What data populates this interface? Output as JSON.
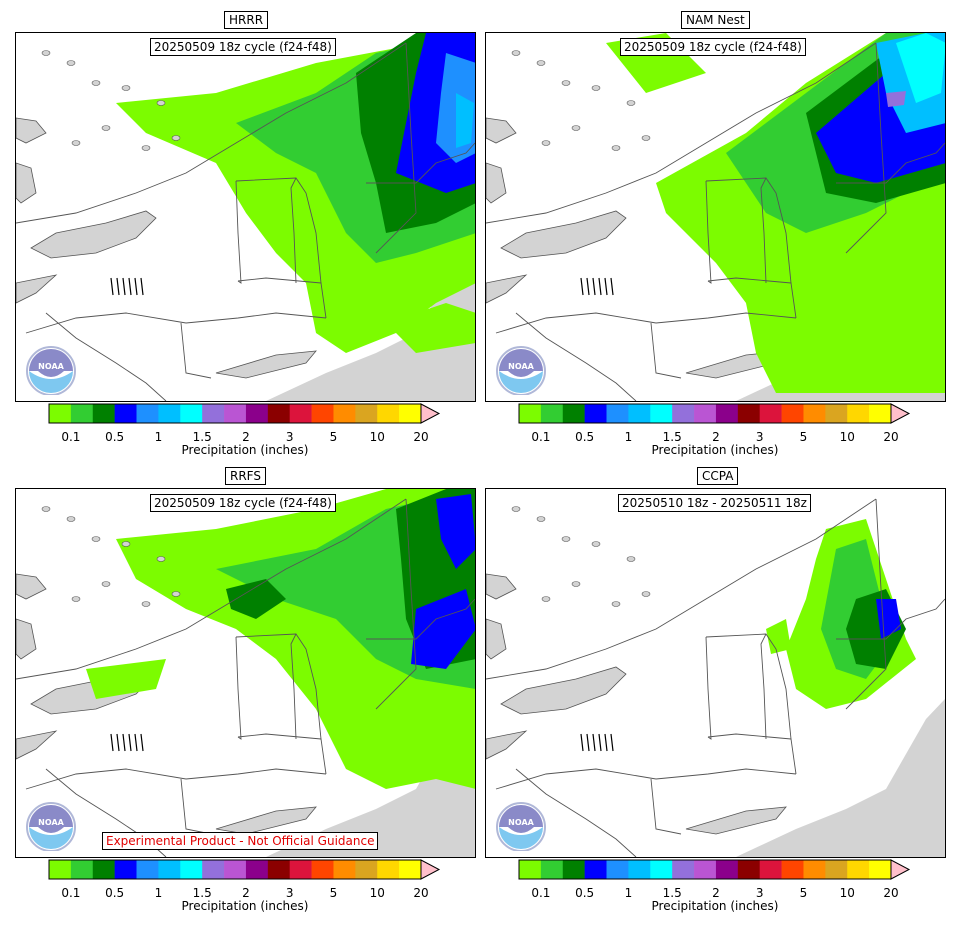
{
  "panels": [
    {
      "title": "HRRR",
      "cycle": "20250509 18z cycle (f24-f48)",
      "warning": "",
      "pattern": "hrrr"
    },
    {
      "title": "NAM Nest",
      "cycle": "20250509 18z cycle (f24-f48)",
      "warning": "",
      "pattern": "nam"
    },
    {
      "title": "RRFS",
      "cycle": "20250509 18z cycle (f24-f48)",
      "warning": "Experimental Product - Not Official Guidance",
      "pattern": "rrfs"
    },
    {
      "title": "CCPA",
      "cycle": "20250510 18z - 20250511 18z",
      "warning": "",
      "pattern": "ccpa"
    }
  ],
  "logo": {
    "text": "NOAA",
    "icon": "noaa-logo-icon"
  },
  "colorbar": {
    "label": "Precipitation (inches)",
    "ticks": [
      "0.1",
      "0.5",
      "1",
      "1.5",
      "2",
      "3",
      "5",
      "10",
      "20"
    ],
    "colors": [
      "#7cfc00",
      "#32cd32",
      "#008000",
      "#0000ff",
      "#1e90ff",
      "#00bfff",
      "#00ffff",
      "#9370db",
      "#ba55d3",
      "#8b008b",
      "#8b0000",
      "#dc143c",
      "#ff4500",
      "#ff8c00",
      "#daa520",
      "#ffd700",
      "#ffff00"
    ],
    "extend_color": "#ffc0cb"
  },
  "map_colors": {
    "water": "#d3d3d3",
    "land": "#ffffff",
    "border": "#555555"
  }
}
